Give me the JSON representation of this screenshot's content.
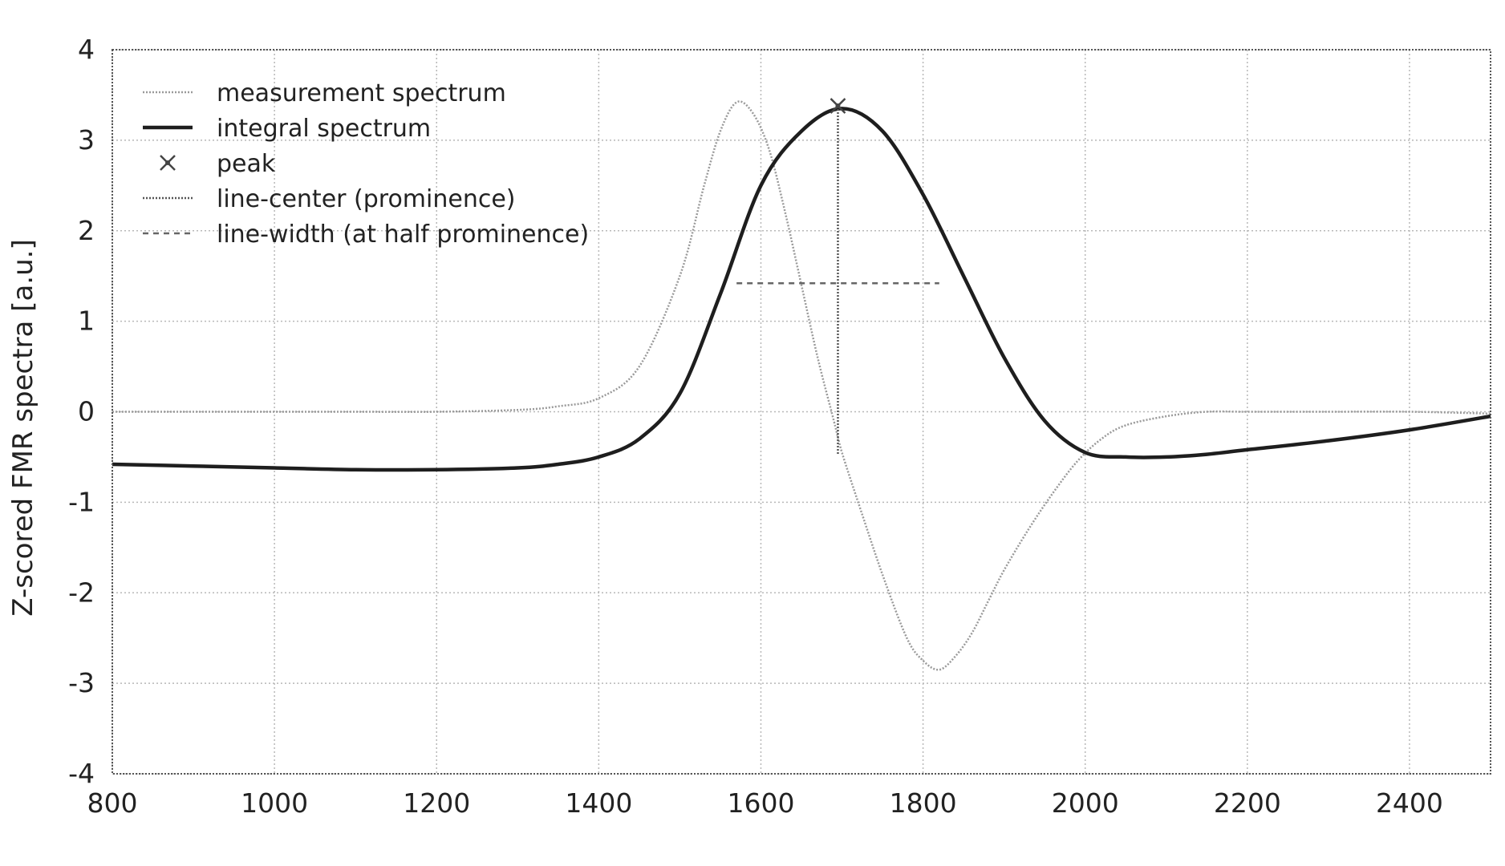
{
  "chart_data": {
    "type": "line",
    "title": "",
    "xlabel": "",
    "ylabel": "Z-scored FMR spectra [a.u.]",
    "xlim": [
      800,
      2500
    ],
    "ylim": [
      -4,
      4
    ],
    "xticks": [
      800,
      1000,
      1200,
      1400,
      1600,
      1800,
      2000,
      2200,
      2400
    ],
    "yticks": [
      4,
      3,
      2,
      1,
      0,
      -1,
      -2,
      -3,
      -4
    ],
    "grid": true,
    "legend_position": "top-left",
    "legend": [
      {
        "label": "measurement spectrum",
        "style": "dotted-thin"
      },
      {
        "label": "integral spectrum",
        "style": "solid-thick"
      },
      {
        "label": "peak",
        "style": "marker-x"
      },
      {
        "label": "line-center (prominence)",
        "style": "dotted"
      },
      {
        "label": "line-width (at half prominence)",
        "style": "dashed"
      }
    ],
    "series": [
      {
        "name": "measurement spectrum",
        "x": [
          800,
          900,
          1000,
          1100,
          1200,
          1300,
          1350,
          1400,
          1450,
          1500,
          1530,
          1550,
          1570,
          1590,
          1610,
          1630,
          1650,
          1670,
          1690,
          1700,
          1720,
          1750,
          1780,
          1800,
          1820,
          1840,
          1860,
          1880,
          1900,
          1930,
          1960,
          1990,
          2020,
          2050,
          2100,
          2150,
          2200,
          2300,
          2400,
          2500
        ],
        "y": [
          0.0,
          0.0,
          0.0,
          0.0,
          0.0,
          0.02,
          0.06,
          0.15,
          0.5,
          1.5,
          2.5,
          3.1,
          3.42,
          3.3,
          2.9,
          2.2,
          1.4,
          0.6,
          -0.1,
          -0.45,
          -1.0,
          -1.8,
          -2.5,
          -2.75,
          -2.85,
          -2.7,
          -2.45,
          -2.1,
          -1.75,
          -1.3,
          -0.9,
          -0.55,
          -0.3,
          -0.15,
          -0.05,
          0.0,
          0.0,
          0.0,
          0.0,
          -0.02
        ]
      },
      {
        "name": "integral spectrum",
        "x": [
          800,
          900,
          1000,
          1100,
          1200,
          1300,
          1350,
          1400,
          1450,
          1500,
          1550,
          1600,
          1650,
          1700,
          1750,
          1800,
          1850,
          1900,
          1950,
          2000,
          2050,
          2100,
          2150,
          2200,
          2300,
          2400,
          2500
        ],
        "y": [
          -0.58,
          -0.6,
          -0.62,
          -0.64,
          -0.64,
          -0.62,
          -0.58,
          -0.5,
          -0.3,
          0.2,
          1.3,
          2.5,
          3.1,
          3.35,
          3.1,
          2.4,
          1.5,
          0.6,
          -0.1,
          -0.45,
          -0.5,
          -0.5,
          -0.47,
          -0.42,
          -0.32,
          -0.2,
          -0.05
        ]
      }
    ],
    "peak": {
      "x": 1695,
      "y": 3.38
    },
    "line_center": {
      "x": 1695,
      "y_top": 3.38,
      "y_bottom": -0.48
    },
    "line_width": {
      "x_start": 1570,
      "x_end": 1820,
      "y": 1.42
    }
  }
}
